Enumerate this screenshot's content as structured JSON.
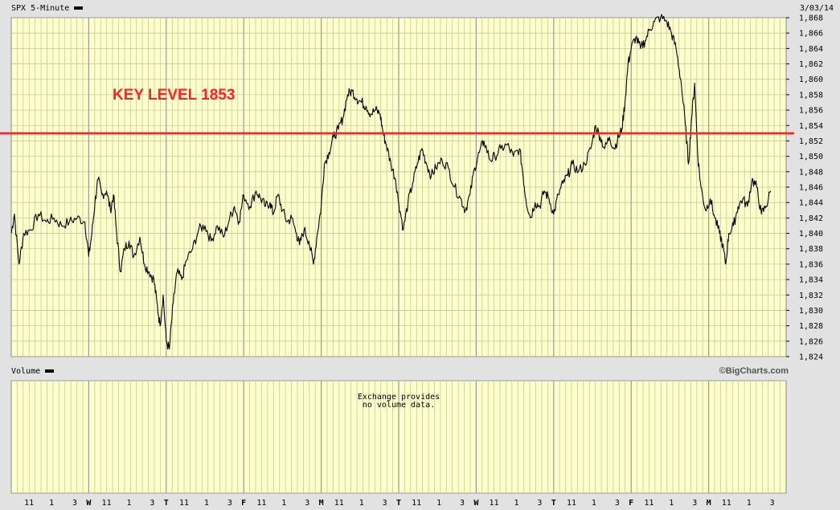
{
  "header": {
    "symbol_label": "SPX 5-Minute",
    "date_label": "3/03/14"
  },
  "volume_panel": {
    "label": "Volume",
    "note_line1": "Exchange provides",
    "note_line2": "no volume data."
  },
  "brand": "©BigCharts.com",
  "annotation": {
    "text": "KEY LEVEL 1853",
    "color": "#ff2222",
    "level": 1853
  },
  "colors": {
    "panel_background": "#ffffcc",
    "grid_minor": "#c8c8a0",
    "grid_day": "#9a9a9a",
    "price_line": "#000000",
    "key_level_line": "#ff2222",
    "frame": "#e2e2e2"
  },
  "chart_data": {
    "type": "line",
    "title": "SPX 5-Minute",
    "ylim": [
      1824,
      1868
    ],
    "yticks": [
      "1,824",
      "1,826",
      "1,828",
      "1,830",
      "1,832",
      "1,834",
      "1,836",
      "1,838",
      "1,840",
      "1,842",
      "1,844",
      "1,846",
      "1,848",
      "1,850",
      "1,852",
      "1,854",
      "1,856",
      "1,858",
      "1,860",
      "1,862",
      "1,864",
      "1,866",
      "1,868"
    ],
    "x_axis_labels": [
      "11",
      "1",
      "3",
      "W",
      "11",
      "1",
      "3",
      "T",
      "11",
      "1",
      "3",
      "F",
      "11",
      "1",
      "3",
      "M",
      "11",
      "1",
      "3",
      "T",
      "11",
      "1",
      "3",
      "W",
      "11",
      "1",
      "3",
      "T",
      "11",
      "1",
      "3",
      "F",
      "11",
      "1",
      "3",
      "M",
      "11",
      "1",
      "3"
    ],
    "day_boundaries": [
      0.0,
      0.1,
      0.2,
      0.3,
      0.4,
      0.5,
      0.6,
      0.7,
      0.8,
      0.9,
      1.0
    ],
    "grid": true,
    "series": [
      {
        "values": [
          [
            0.0,
            1840.0
          ],
          [
            0.004,
            1842.5
          ],
          [
            0.01,
            1836.0
          ],
          [
            0.016,
            1840.0
          ],
          [
            0.025,
            1840.5
          ],
          [
            0.035,
            1842.5
          ],
          [
            0.045,
            1841.5
          ],
          [
            0.055,
            1842.0
          ],
          [
            0.065,
            1841.0
          ],
          [
            0.075,
            1841.5
          ],
          [
            0.085,
            1842.0
          ],
          [
            0.095,
            1841.5
          ],
          [
            0.1,
            1837.0
          ],
          [
            0.104,
            1840.0
          ],
          [
            0.108,
            1844.0
          ],
          [
            0.112,
            1847.0
          ],
          [
            0.117,
            1845.0
          ],
          [
            0.123,
            1845.5
          ],
          [
            0.128,
            1843.0
          ],
          [
            0.132,
            1845.0
          ],
          [
            0.136,
            1840.0
          ],
          [
            0.141,
            1835.0
          ],
          [
            0.146,
            1838.0
          ],
          [
            0.152,
            1839.0
          ],
          [
            0.158,
            1837.0
          ],
          [
            0.166,
            1839.5
          ],
          [
            0.172,
            1836.0
          ],
          [
            0.178,
            1835.0
          ],
          [
            0.184,
            1834.0
          ],
          [
            0.188,
            1831.0
          ],
          [
            0.192,
            1828.0
          ],
          [
            0.196,
            1832.0
          ],
          [
            0.2,
            1826.0
          ],
          [
            0.204,
            1825.0
          ],
          [
            0.209,
            1831.0
          ],
          [
            0.214,
            1835.0
          ],
          [
            0.22,
            1834.0
          ],
          [
            0.226,
            1836.5
          ],
          [
            0.234,
            1838.0
          ],
          [
            0.242,
            1840.5
          ],
          [
            0.25,
            1841.0
          ],
          [
            0.258,
            1839.0
          ],
          [
            0.266,
            1841.0
          ],
          [
            0.274,
            1839.5
          ],
          [
            0.282,
            1842.0
          ],
          [
            0.288,
            1843.5
          ],
          [
            0.294,
            1841.5
          ],
          [
            0.3,
            1845.0
          ],
          [
            0.308,
            1843.5
          ],
          [
            0.316,
            1845.5
          ],
          [
            0.322,
            1844.5
          ],
          [
            0.328,
            1843.5
          ],
          [
            0.334,
            1844.0
          ],
          [
            0.338,
            1842.5
          ],
          [
            0.344,
            1845.0
          ],
          [
            0.35,
            1843.0
          ],
          [
            0.356,
            1841.5
          ],
          [
            0.362,
            1842.0
          ],
          [
            0.368,
            1840.0
          ],
          [
            0.372,
            1838.5
          ],
          [
            0.378,
            1840.5
          ],
          [
            0.384,
            1839.0
          ],
          [
            0.39,
            1836.0
          ],
          [
            0.395,
            1840.0
          ],
          [
            0.4,
            1843.5
          ],
          [
            0.404,
            1849.0
          ],
          [
            0.41,
            1850.5
          ],
          [
            0.416,
            1852.5
          ],
          [
            0.422,
            1853.5
          ],
          [
            0.428,
            1855.0
          ],
          [
            0.434,
            1858.0
          ],
          [
            0.44,
            1858.5
          ],
          [
            0.446,
            1857.5
          ],
          [
            0.452,
            1857.0
          ],
          [
            0.458,
            1856.5
          ],
          [
            0.464,
            1855.5
          ],
          [
            0.47,
            1856.0
          ],
          [
            0.476,
            1855.5
          ],
          [
            0.48,
            1853.0
          ],
          [
            0.484,
            1851.5
          ],
          [
            0.49,
            1849.0
          ],
          [
            0.496,
            1847.0
          ],
          [
            0.5,
            1844.0
          ],
          [
            0.506,
            1840.5
          ],
          [
            0.512,
            1844.0
          ],
          [
            0.518,
            1846.5
          ],
          [
            0.524,
            1849.0
          ],
          [
            0.53,
            1851.0
          ],
          [
            0.536,
            1849.0
          ],
          [
            0.542,
            1847.5
          ],
          [
            0.548,
            1848.5
          ],
          [
            0.556,
            1849.5
          ],
          [
            0.564,
            1848.5
          ],
          [
            0.572,
            1846.0
          ],
          [
            0.58,
            1844.5
          ],
          [
            0.586,
            1843.0
          ],
          [
            0.592,
            1845.0
          ],
          [
            0.598,
            1848.5
          ],
          [
            0.604,
            1850.5
          ],
          [
            0.61,
            1852.0
          ],
          [
            0.618,
            1849.5
          ],
          [
            0.624,
            1850.0
          ],
          [
            0.632,
            1851.0
          ],
          [
            0.64,
            1851.5
          ],
          [
            0.648,
            1850.0
          ],
          [
            0.656,
            1851.0
          ],
          [
            0.66,
            1848.0
          ],
          [
            0.664,
            1844.5
          ],
          [
            0.67,
            1842.0
          ],
          [
            0.676,
            1844.0
          ],
          [
            0.682,
            1843.5
          ],
          [
            0.688,
            1845.5
          ],
          [
            0.694,
            1844.5
          ],
          [
            0.7,
            1842.5
          ],
          [
            0.706,
            1845.0
          ],
          [
            0.712,
            1846.5
          ],
          [
            0.718,
            1847.5
          ],
          [
            0.724,
            1849.0
          ],
          [
            0.732,
            1848.0
          ],
          [
            0.74,
            1849.0
          ],
          [
            0.748,
            1851.0
          ],
          [
            0.754,
            1854.0
          ],
          [
            0.76,
            1852.5
          ],
          [
            0.766,
            1851.0
          ],
          [
            0.772,
            1852.5
          ],
          [
            0.778,
            1851.0
          ],
          [
            0.784,
            1852.5
          ],
          [
            0.788,
            1853.5
          ],
          [
            0.792,
            1857.0
          ],
          [
            0.796,
            1862.0
          ],
          [
            0.8,
            1864.0
          ],
          [
            0.806,
            1865.5
          ],
          [
            0.812,
            1864.0
          ],
          [
            0.818,
            1865.0
          ],
          [
            0.824,
            1866.5
          ],
          [
            0.83,
            1867.5
          ],
          [
            0.838,
            1868.0
          ],
          [
            0.846,
            1867.5
          ],
          [
            0.852,
            1866.0
          ],
          [
            0.858,
            1864.0
          ],
          [
            0.864,
            1860.0
          ],
          [
            0.87,
            1854.0
          ],
          [
            0.874,
            1849.0
          ],
          [
            0.878,
            1855.0
          ],
          [
            0.882,
            1859.5
          ],
          [
            0.886,
            1850.0
          ],
          [
            0.89,
            1846.0
          ],
          [
            0.896,
            1843.0
          ],
          [
            0.902,
            1844.5
          ],
          [
            0.908,
            1842.0
          ],
          [
            0.914,
            1840.0
          ],
          [
            0.918,
            1838.5
          ],
          [
            0.922,
            1836.0
          ],
          [
            0.926,
            1840.0
          ],
          [
            0.932,
            1841.0
          ],
          [
            0.938,
            1843.5
          ],
          [
            0.944,
            1844.5
          ],
          [
            0.95,
            1843.5
          ],
          [
            0.956,
            1847.0
          ],
          [
            0.962,
            1846.0
          ],
          [
            0.968,
            1842.5
          ],
          [
            0.974,
            1843.5
          ],
          [
            0.98,
            1845.5
          ]
        ]
      }
    ]
  }
}
